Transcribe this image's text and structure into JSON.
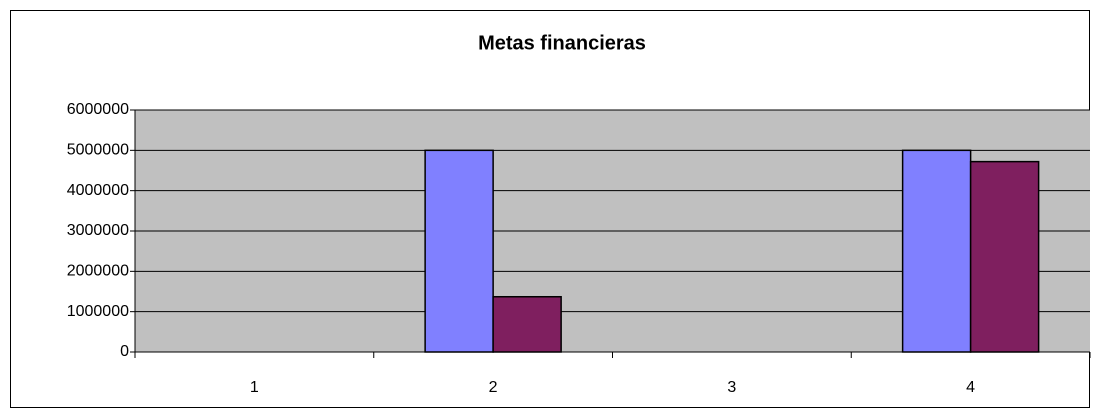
{
  "chart_data": {
    "type": "bar",
    "title": "Metas financieras",
    "categories": [
      "1",
      "2",
      "3",
      "4"
    ],
    "series": [
      {
        "color": "#8080ff",
        "values": [
          null,
          5000000,
          null,
          5000000
        ]
      },
      {
        "color": "#7f1f5f",
        "values": [
          null,
          1370000,
          null,
          4720000
        ]
      }
    ],
    "ylim": [
      0,
      6000000
    ],
    "yticks": [
      0,
      1000000,
      2000000,
      3000000,
      4000000,
      5000000,
      6000000
    ],
    "grid": true,
    "plot_background": "#c0c0c0"
  }
}
